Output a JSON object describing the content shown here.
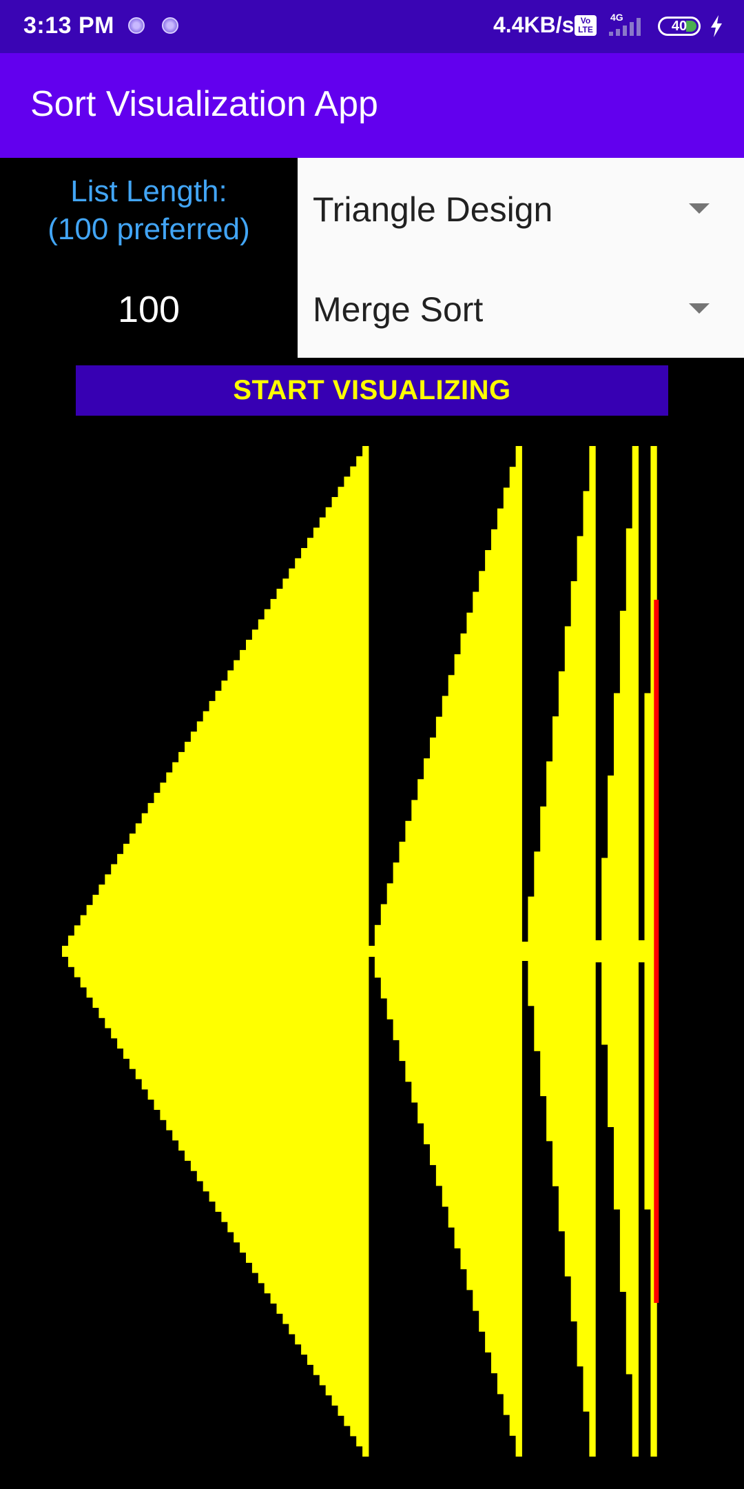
{
  "status_bar": {
    "time": "3:13 PM",
    "speed": "4.4KB/s",
    "volte": "Vo LTE",
    "network": "4G",
    "battery": "40"
  },
  "app_bar": {
    "title": "Sort Visualization App"
  },
  "controls": {
    "list_length_label": "List Length:\n(100 preferred)",
    "list_length_value": "100",
    "design_spinner": "Triangle Design",
    "algorithm_spinner": "Merge Sort",
    "start_button": "START VISUALIZING"
  },
  "visualization": {
    "bar_color": "#ffff00",
    "highlight_color": "#ff0000",
    "background": "#000000",
    "runs": [
      {
        "start": 0,
        "length": 50
      },
      {
        "start": 50,
        "length": 25
      },
      {
        "start": 75,
        "length": 12
      },
      {
        "start": 87,
        "length": 7
      },
      {
        "start": 94,
        "length": 3
      }
    ],
    "highlight_index": 97
  }
}
